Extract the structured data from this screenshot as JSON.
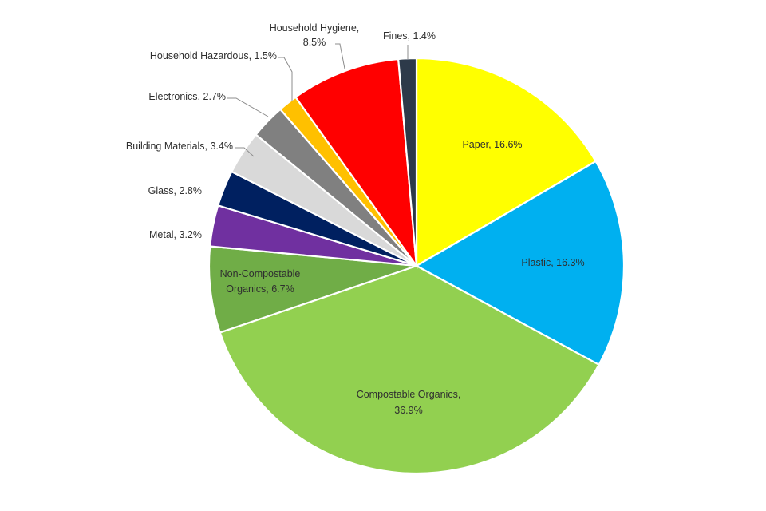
{
  "chart_data": {
    "type": "pie",
    "title": "",
    "start_angle_deg": 0,
    "direction": "clockwise",
    "slices": [
      {
        "name": "Paper",
        "value": 16.6,
        "color": "#ffff00",
        "label": "Paper, 16.6%",
        "label_position": "inside"
      },
      {
        "name": "Plastic",
        "value": 16.3,
        "color": "#00b0f0",
        "label": "Plastic, 16.3%",
        "label_position": "inside"
      },
      {
        "name": "Compostable Organics",
        "value": 36.9,
        "color": "#92d050",
        "label": "Compostable Organics,\n36.9%",
        "label_position": "inside"
      },
      {
        "name": "Non-Compostable Organics",
        "value": 6.7,
        "color": "#70ad47",
        "label": "Non-Compostable\nOrganics, 6.7%",
        "label_position": "inside"
      },
      {
        "name": "Metal",
        "value": 3.2,
        "color": "#7030a0",
        "label": "Metal, 3.2%",
        "label_position": "outside"
      },
      {
        "name": "Glass",
        "value": 2.8,
        "color": "#002060",
        "label": "Glass, 2.8%",
        "label_position": "outside"
      },
      {
        "name": "Building Materials",
        "value": 3.4,
        "color": "#d9d9d9",
        "label": "Building Materials, 3.4%",
        "label_position": "outside"
      },
      {
        "name": "Electronics",
        "value": 2.7,
        "color": "#808080",
        "label": "Electronics, 2.7%",
        "label_position": "outside"
      },
      {
        "name": "Household Hazardous",
        "value": 1.5,
        "color": "#ffc000",
        "label": "Household Hazardous, 1.5%",
        "label_position": "outside"
      },
      {
        "name": "Household Hygiene",
        "value": 8.5,
        "color": "#ff0000",
        "label": "Household Hygiene,\n8.5%",
        "label_position": "outside"
      },
      {
        "name": "Fines",
        "value": 1.4,
        "color": "#2d3a4a",
        "label": "Fines, 1.4%",
        "label_position": "outside"
      }
    ]
  }
}
